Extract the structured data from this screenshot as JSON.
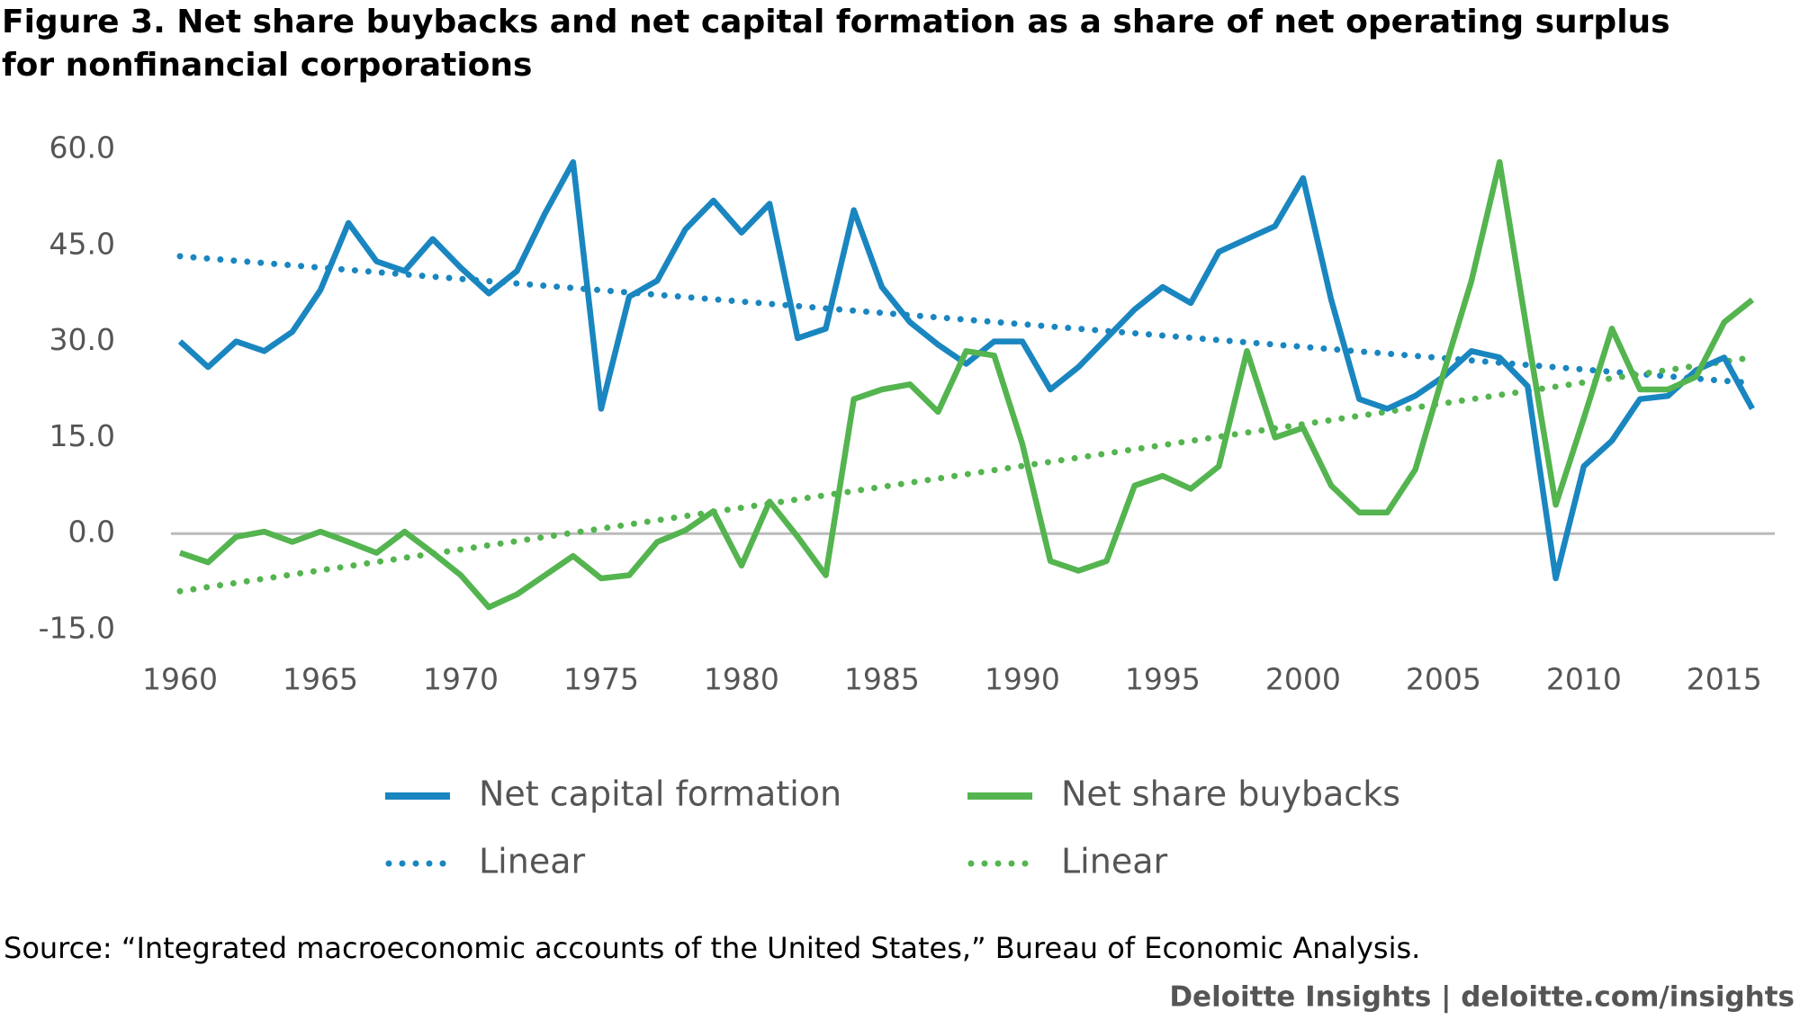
{
  "chart_data": {
    "type": "line",
    "title": [
      "Figure 3. Net share buybacks and net capital formation as a share of net operating surplus",
      "for nonfinancial corporations"
    ],
    "source": "Source: “Integrated macroeconomic accounts of the United States,” Bureau of Economic Analysis.",
    "footer": "Deloitte Insights | deloitte.com/insights",
    "x": [
      1960,
      1961,
      1962,
      1963,
      1964,
      1965,
      1966,
      1967,
      1968,
      1969,
      1970,
      1971,
      1972,
      1973,
      1974,
      1975,
      1976,
      1977,
      1978,
      1979,
      1980,
      1981,
      1982,
      1983,
      1984,
      1985,
      1986,
      1987,
      1988,
      1989,
      1990,
      1991,
      1992,
      1993,
      1994,
      1995,
      1996,
      1997,
      1998,
      1999,
      2000,
      2001,
      2002,
      2003,
      2004,
      2005,
      2006,
      2007,
      2008,
      2009,
      2010,
      2011,
      2012,
      2013,
      2014,
      2015,
      2016
    ],
    "xlim": [
      1960,
      2016
    ],
    "xticks": [
      1960,
      1965,
      1970,
      1975,
      1980,
      1985,
      1990,
      1995,
      2000,
      2005,
      2010,
      2015
    ],
    "ylim": [
      -15,
      60
    ],
    "yticks": [
      {
        "value": 60,
        "label": "60.0"
      },
      {
        "value": 45,
        "label": "45.0"
      },
      {
        "value": 30,
        "label": "30.0"
      },
      {
        "value": 15,
        "label": "15.0"
      },
      {
        "value": 0,
        "label": "0.0"
      },
      {
        "value": -15,
        "label": "-15.0"
      }
    ],
    "zero_line": true,
    "series": [
      {
        "name": "Net capital formation",
        "color": "#1a86c0",
        "style": "solid",
        "values": [
          30,
          26,
          30,
          28.5,
          31.5,
          38,
          48.5,
          42.5,
          41,
          46,
          41.5,
          37.5,
          41,
          50,
          58,
          19.5,
          37,
          39.5,
          47.5,
          52,
          47,
          51.5,
          30.5,
          32,
          50.5,
          38.5,
          33,
          29.5,
          26.5,
          30,
          30,
          22.5,
          26,
          30.5,
          35,
          38.5,
          36,
          44,
          46,
          48,
          55.5,
          36.5,
          21,
          19.5,
          21.5,
          24.5,
          28.5,
          27.5,
          23,
          -7,
          10.5,
          14.5,
          21,
          21.5,
          25.5,
          27.5,
          19.5
        ]
      },
      {
        "name": "Net share buybacks",
        "color": "#54b44f",
        "style": "solid",
        "values": [
          -3,
          -4.5,
          -0.5,
          0.3,
          -1.3,
          0.3,
          -1.3,
          -3,
          0.3,
          -3,
          -6.5,
          -11.5,
          -9.5,
          -6.5,
          -3.5,
          -7,
          -6.5,
          -1.3,
          0.5,
          3.5,
          -5,
          5,
          -0.5,
          -6.5,
          21,
          22.5,
          23.3,
          19,
          28.5,
          27.8,
          14,
          -4.3,
          -5.8,
          -4.3,
          7.5,
          9,
          7,
          10.5,
          28.5,
          15,
          16.5,
          7.5,
          3.3,
          3.3,
          10,
          25,
          39.5,
          58,
          31,
          4.5,
          18,
          32,
          22.5,
          22.5,
          24.5,
          33,
          36.5
        ]
      },
      {
        "name": "Linear",
        "color": "#1a86c0",
        "style": "dotted",
        "x": [
          1960,
          2016
        ],
        "values": [
          43.3,
          23.5
        ]
      },
      {
        "name": "Linear",
        "color": "#54b44f",
        "style": "dotted",
        "x": [
          1960,
          2016
        ],
        "values": [
          -9,
          27.5
        ]
      }
    ]
  }
}
